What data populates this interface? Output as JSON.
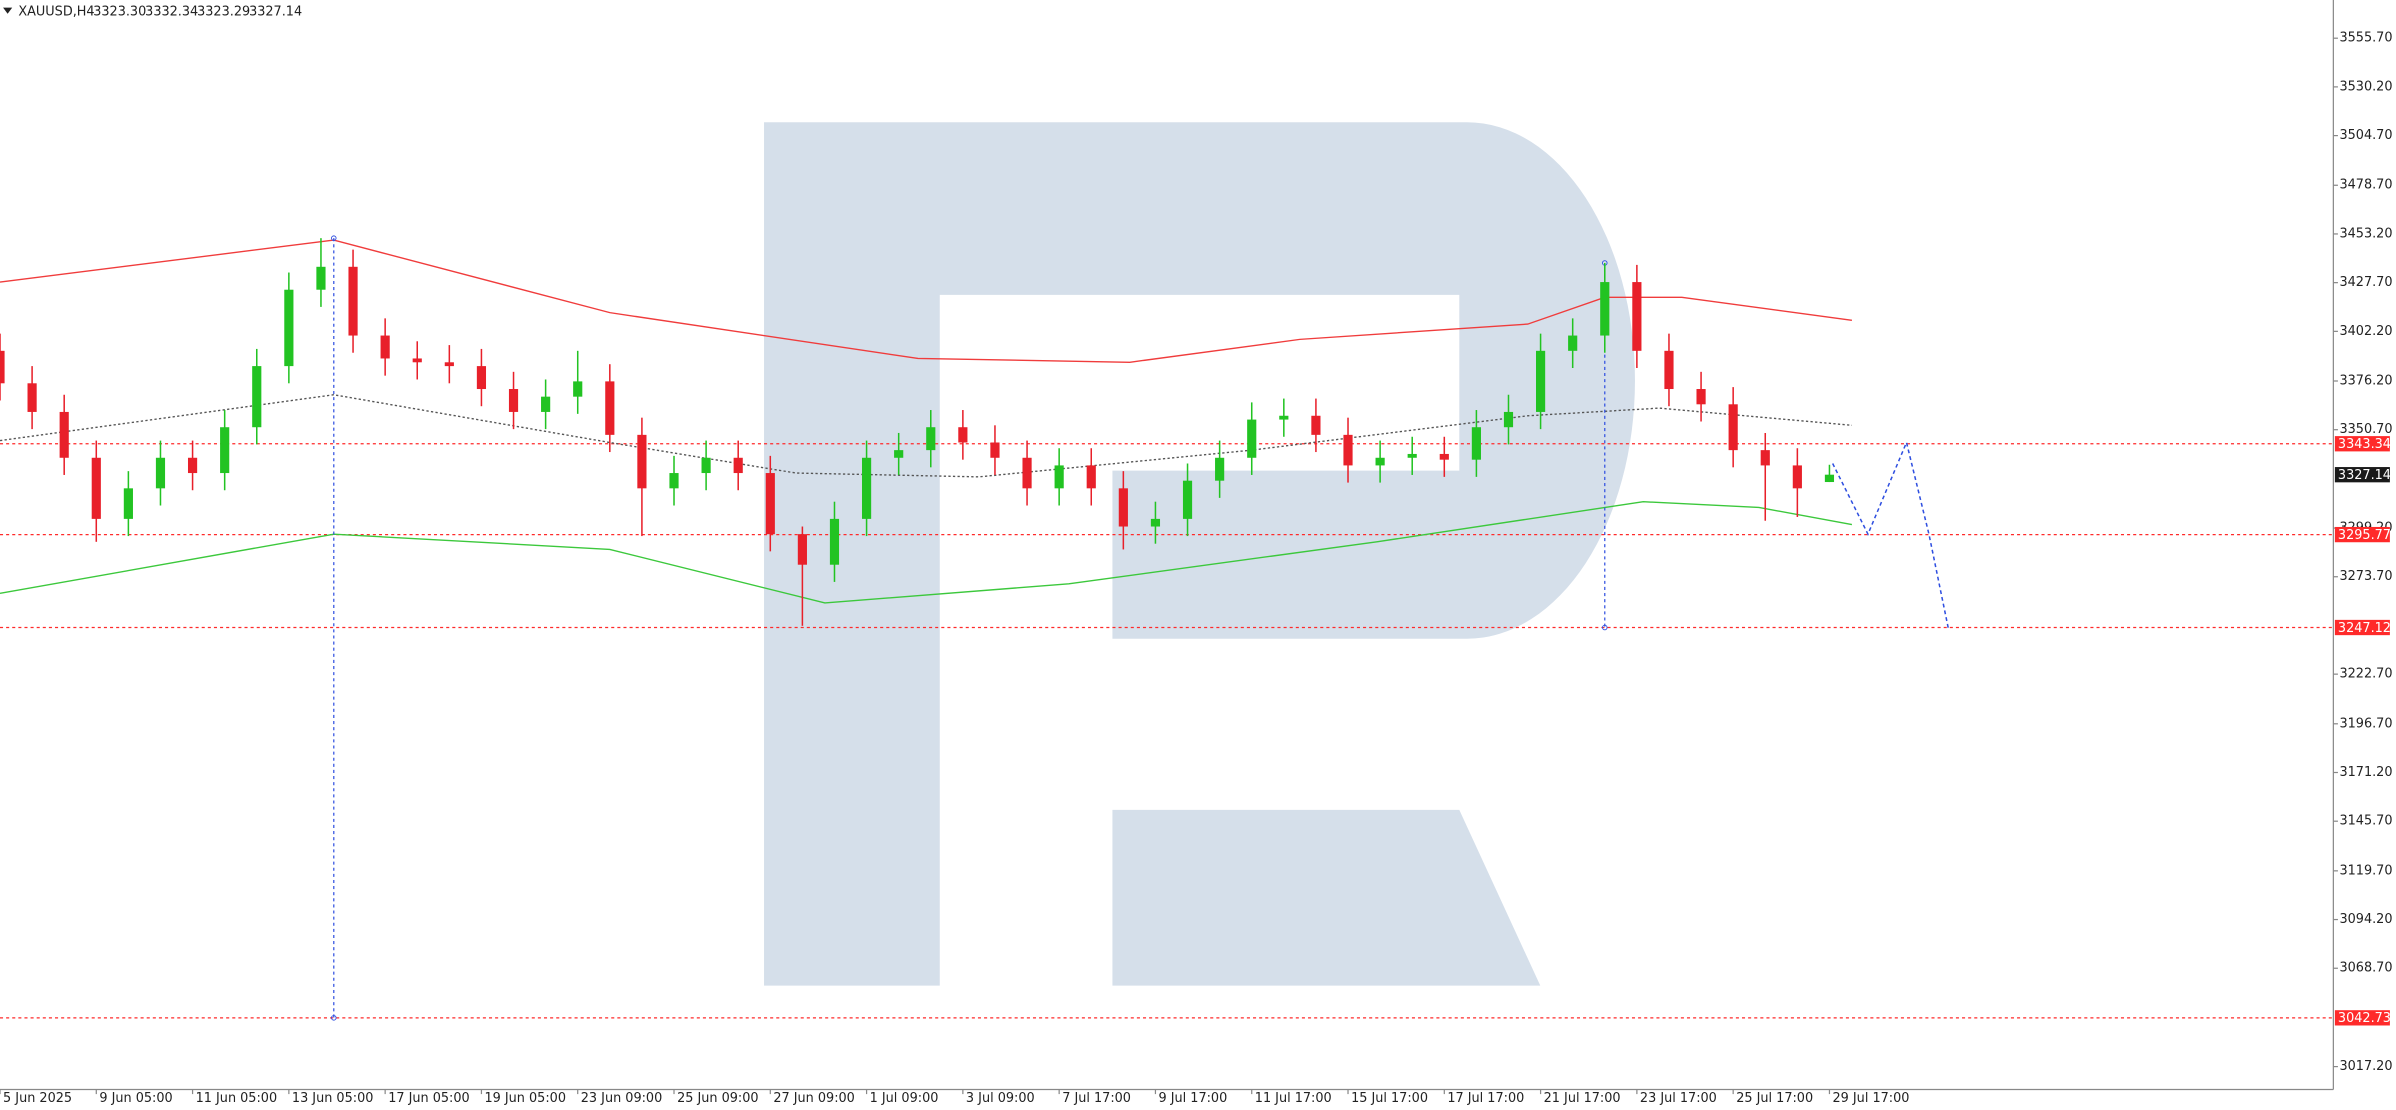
{
  "header": {
    "symbol": "XAUUSD,H4",
    "ohlc": [
      "3323.30",
      "3332.34",
      "3323.29",
      "3327.14"
    ]
  },
  "chart_data": {
    "type": "candlestick",
    "xlim": [
      0,
      72.7
    ],
    "ylim": [
      3005.2,
      3575.7
    ],
    "xticks": [
      {
        "value": 0,
        "label": "5 Jun 2025"
      },
      {
        "value": 3,
        "label": "9 Jun 05:00"
      },
      {
        "value": 6,
        "label": "11 Jun 05:00"
      },
      {
        "value": 9,
        "label": "13 Jun 05:00"
      },
      {
        "value": 12,
        "label": "17 Jun 05:00"
      },
      {
        "value": 15,
        "label": "19 Jun 05:00"
      },
      {
        "value": 18,
        "label": "23 Jun 09:00"
      },
      {
        "value": 21,
        "label": "25 Jun 09:00"
      },
      {
        "value": 24,
        "label": "27 Jun 09:00"
      },
      {
        "value": 27,
        "label": "1 Jul 09:00"
      },
      {
        "value": 30,
        "label": "3 Jul 09:00"
      },
      {
        "value": 33,
        "label": "7 Jul 17:00"
      },
      {
        "value": 36,
        "label": "9 Jul 17:00"
      },
      {
        "value": 39,
        "label": "11 Jul 17:00"
      },
      {
        "value": 42,
        "label": "15 Jul 17:00"
      },
      {
        "value": 45,
        "label": "17 Jul 17:00"
      },
      {
        "value": 48,
        "label": "21 Jul 17:00"
      },
      {
        "value": 51,
        "label": "23 Jul 17:00"
      },
      {
        "value": 54,
        "label": "25 Jul 17:00"
      },
      {
        "value": 57,
        "label": "29 Jul 17:00"
      }
    ],
    "yticks": [
      {
        "value": 3555.7,
        "label": "3555.70"
      },
      {
        "value": 3530.2,
        "label": "3530.20"
      },
      {
        "value": 3504.7,
        "label": "3504.70"
      },
      {
        "value": 3478.7,
        "label": "3478.70"
      },
      {
        "value": 3453.2,
        "label": "3453.20"
      },
      {
        "value": 3427.7,
        "label": "3427.70"
      },
      {
        "value": 3402.2,
        "label": "3402.20"
      },
      {
        "value": 3376.2,
        "label": "3376.20"
      },
      {
        "value": 3350.7,
        "label": "3350.70"
      },
      {
        "value": 3299.2,
        "label": "3299.20"
      },
      {
        "value": 3273.7,
        "label": "3273.70"
      },
      {
        "value": 3222.7,
        "label": "3222.70"
      },
      {
        "value": 3196.7,
        "label": "3196.70"
      },
      {
        "value": 3171.2,
        "label": "3171.20"
      },
      {
        "value": 3145.7,
        "label": "3145.70"
      },
      {
        "value": 3119.7,
        "label": "3119.70"
      },
      {
        "value": 3094.2,
        "label": "3094.20"
      },
      {
        "value": 3068.7,
        "label": "3068.70"
      },
      {
        "value": 3017.2,
        "label": "3017.20"
      }
    ],
    "candles": {
      "open": [
        3392,
        3375,
        3360,
        3336,
        3304,
        3320,
        3336,
        3328,
        3352,
        3384,
        3424,
        3436,
        3400,
        3388,
        3386,
        3384,
        3372,
        3360,
        3368,
        3376,
        3348,
        3320,
        3328,
        3336,
        3328,
        3296,
        3280,
        3304,
        3336,
        3340,
        3352,
        3344,
        3336,
        3320,
        3332,
        3320,
        3300,
        3304,
        3324,
        3336,
        3356,
        3358,
        3348,
        3332,
        3336,
        3338,
        3335,
        3352,
        3360,
        3392,
        3400,
        3428,
        3392,
        3372,
        3364,
        3340,
        3332,
        3323.3
      ],
      "high": [
        3401,
        3384,
        3369,
        3345,
        3329,
        3345,
        3345,
        3361,
        3393,
        3433,
        3451,
        3445,
        3409,
        3397,
        3395,
        3393,
        3381,
        3377,
        3392,
        3385,
        3357,
        3337,
        3345,
        3345,
        3337,
        3300,
        3313,
        3345,
        3349,
        3361,
        3361,
        3353,
        3345,
        3341,
        3341,
        3329,
        3313,
        3333,
        3345,
        3365,
        3367,
        3367,
        3357,
        3345,
        3347,
        3347,
        3361,
        3369,
        3401,
        3409,
        3438,
        3437,
        3401,
        3381,
        3373,
        3349,
        3341,
        3332.34
      ],
      "low": [
        3366,
        3351,
        3327,
        3292,
        3295,
        3311,
        3319,
        3319,
        3343,
        3375,
        3415,
        3391,
        3379,
        3377,
        3375,
        3363,
        3351,
        3351,
        3359,
        3339,
        3295,
        3311,
        3319,
        3319,
        3287,
        3248,
        3271,
        3295,
        3327,
        3331,
        3335,
        3327,
        3311,
        3311,
        3311,
        3288,
        3291,
        3295,
        3315,
        3327,
        3347,
        3339,
        3323,
        3323,
        3327,
        3326,
        3326,
        3343,
        3351,
        3383,
        3391,
        3383,
        3363,
        3355,
        3331,
        3303,
        3305,
        3323.29
      ],
      "close": [
        3375,
        3360,
        3336,
        3304,
        3320,
        3336,
        3328,
        3352,
        3384,
        3424,
        3436,
        3400,
        3388,
        3386,
        3384,
        3372,
        3360,
        3368,
        3376,
        3348,
        3320,
        3328,
        3336,
        3328,
        3296,
        3280,
        3304,
        3336,
        3340,
        3352,
        3344,
        3336,
        3320,
        3332,
        3320,
        3300,
        3304,
        3324,
        3336,
        3356,
        3358,
        3348,
        3332,
        3336,
        3338,
        3335,
        3352,
        3360,
        3392,
        3400,
        3428,
        3392,
        3372,
        3364,
        3340,
        3332,
        3320,
        3327.14
      ]
    },
    "up_color": "#22c322",
    "down_color": "#e8202a",
    "overlays": [
      {
        "color": "#f03c3c",
        "style": "solid",
        "x": [
          0,
          10.4,
          19,
          28.6,
          35.2,
          40.5,
          47.6,
          50,
          52.4,
          57.7
        ],
        "values": [
          3428,
          3450,
          3412,
          3388,
          3386,
          3398,
          3406,
          3420,
          3420,
          3408
        ]
      },
      {
        "color": "#3cc83c",
        "style": "solid",
        "x": [
          0,
          10.4,
          19,
          25.7,
          33.3,
          42.9,
          51.2,
          54.8,
          57.7
        ],
        "values": [
          3265,
          3296,
          3288,
          3260,
          3270,
          3292,
          3313,
          3310,
          3301
        ]
      },
      {
        "color": "#555555",
        "style": "dotted",
        "x": [
          0,
          10.4,
          19,
          24.8,
          30.5,
          39,
          47.6,
          51.7,
          57.7
        ],
        "values": [
          3345,
          3369,
          3344,
          3328,
          3326,
          3340,
          3358,
          3362,
          3353
        ]
      }
    ],
    "levels": {
      "color": "#ff2a2a",
      "values": [
        3343.34,
        3295.77,
        3247.12,
        3042.73
      ]
    },
    "verticals": [
      {
        "x": 10.4,
        "values": [
          3451,
          3042.73
        ]
      },
      {
        "x": 50,
        "values": [
          3438,
          3247.12
        ]
      }
    ],
    "forecast": {
      "color": "#2f4fe0",
      "x": [
        57.1,
        58.2,
        59.4,
        60.1,
        60.7
      ],
      "values": [
        3333,
        3296,
        3344,
        3296,
        3247
      ]
    }
  }
}
